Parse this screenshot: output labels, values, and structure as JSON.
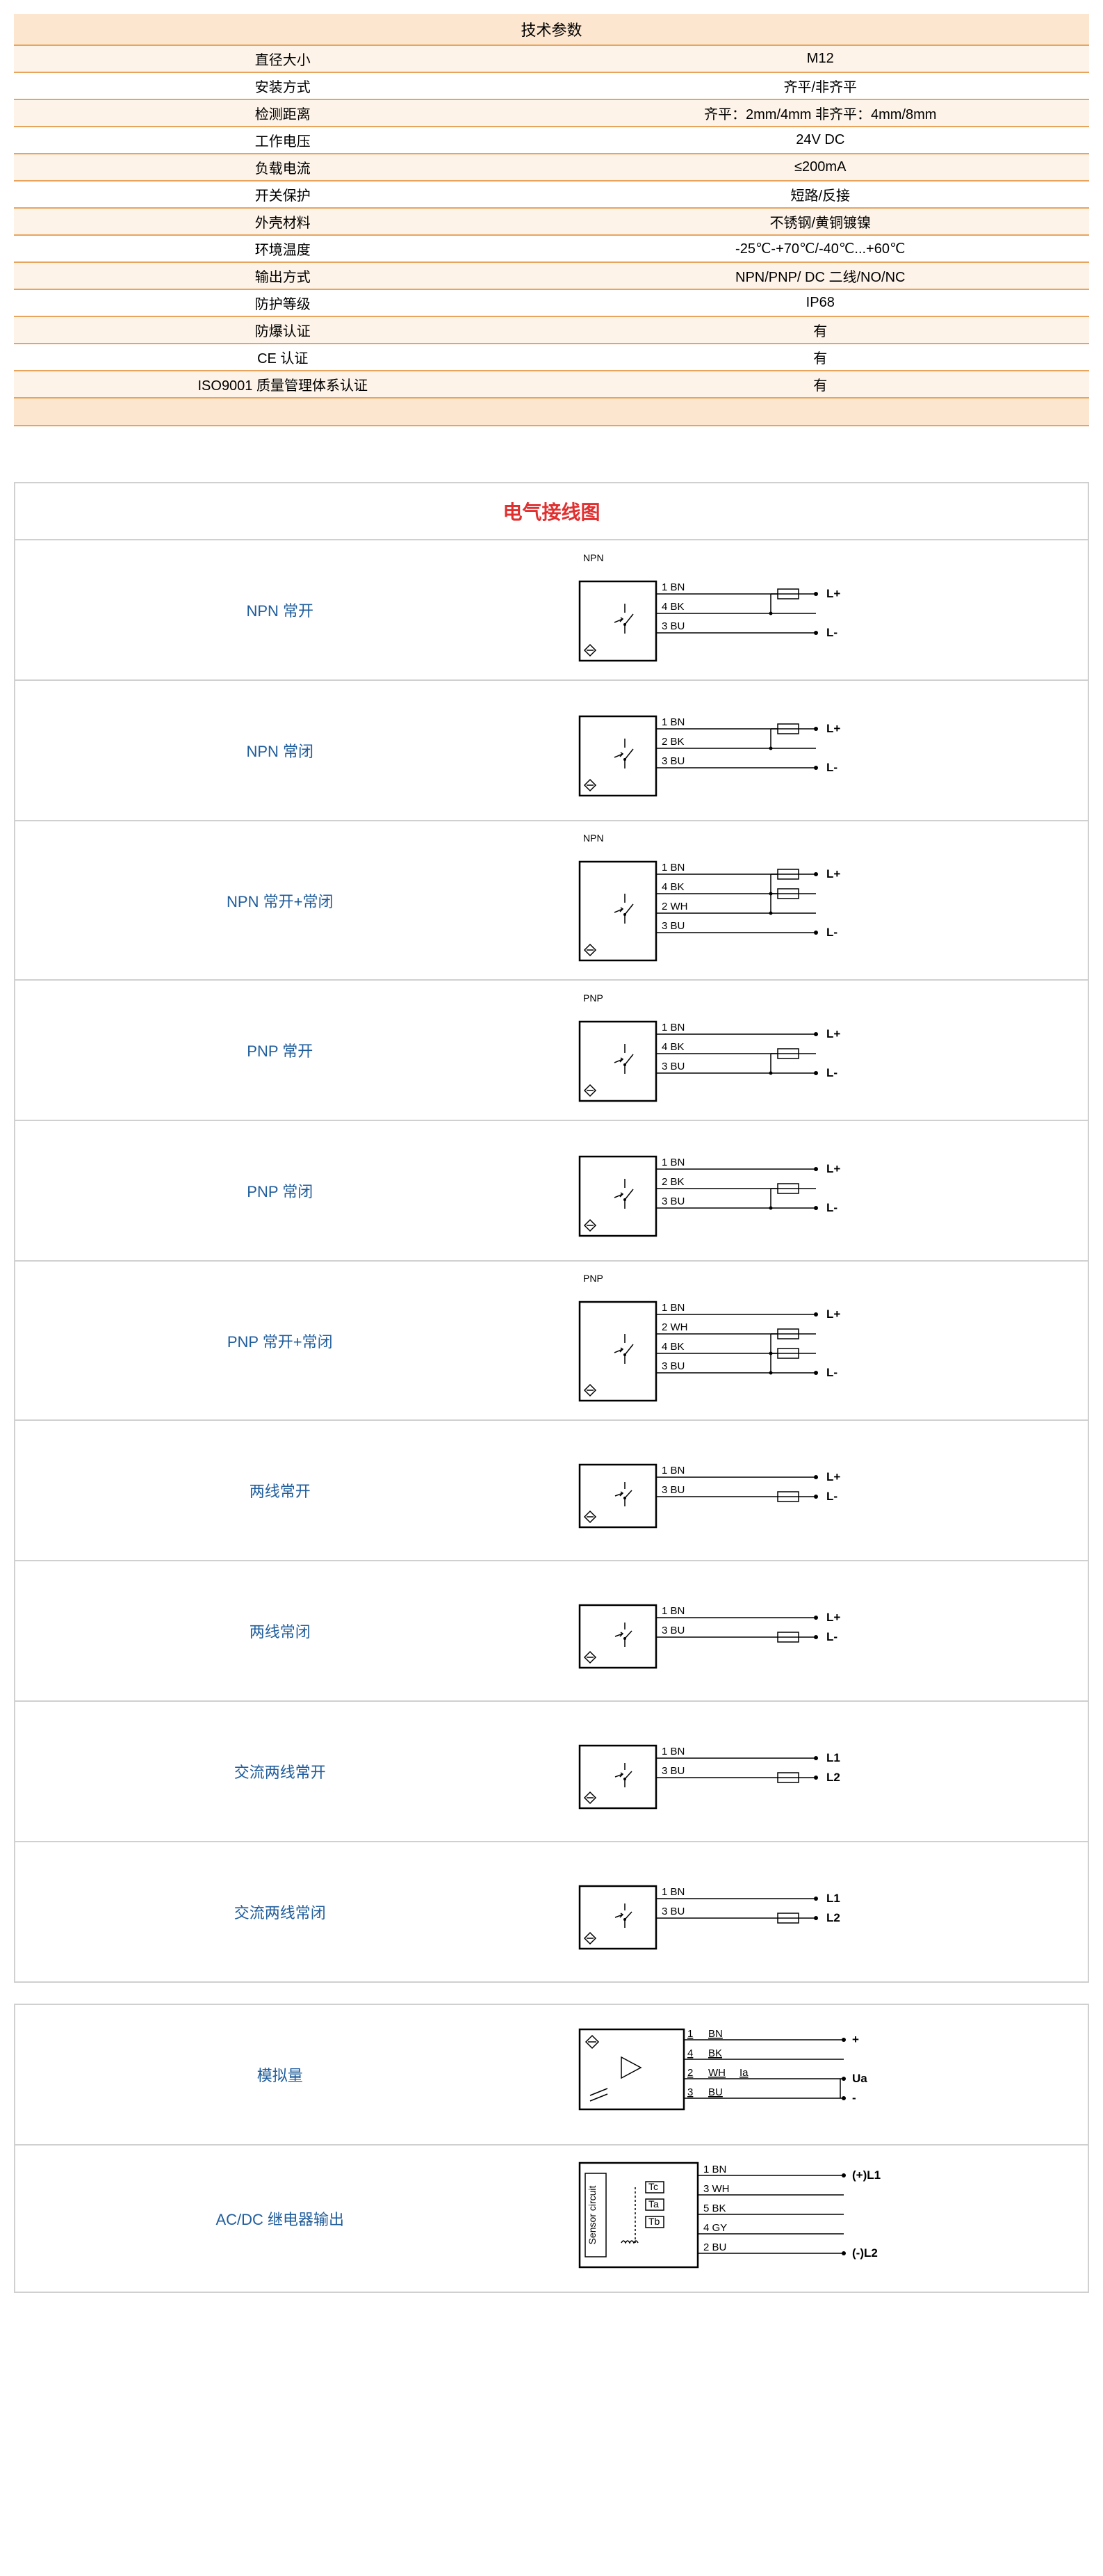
{
  "spec_table": {
    "header": "技术参数",
    "rows": [
      {
        "label": "直径大小",
        "value": "M12",
        "bg": "even"
      },
      {
        "label": "安装方式",
        "value": "齐平/非齐平",
        "bg": "odd"
      },
      {
        "label": "检测距离",
        "value": "齐平：2mm/4mm  非齐平：4mm/8mm",
        "bg": "even"
      },
      {
        "label": "工作电压",
        "value": "24V DC",
        "bg": "odd"
      },
      {
        "label": "负载电流",
        "value": "≤200mA",
        "bg": "even"
      },
      {
        "label": "开关保护",
        "value": "短路/反接",
        "bg": "odd"
      },
      {
        "label": "外壳材料",
        "value": "不锈钢/黄铜镀镍",
        "bg": "even"
      },
      {
        "label": "环境温度",
        "value": "-25℃-+70℃/-40℃...+60℃",
        "bg": "odd"
      },
      {
        "label": "输出方式",
        "value": "NPN/PNP/ DC 二线/NO/NC",
        "bg": "even"
      },
      {
        "label": "防护等级",
        "value": "IP68",
        "bg": "odd"
      },
      {
        "label": "防爆认证",
        "value": "有",
        "bg": "even"
      },
      {
        "label": "CE 认证",
        "value": "有",
        "bg": "odd"
      },
      {
        "label": "ISO9001 质量管理体系认证",
        "value": "有",
        "bg": "even"
      }
    ],
    "colors": {
      "header_bg": "#fce6cf",
      "even_bg": "#fdf3e8",
      "odd_bg": "#ffffff",
      "border": "#e8a45c"
    }
  },
  "wiring": {
    "title": "电气接线图",
    "title_color": "#e03030",
    "label_color": "#1f5d9c",
    "diagrams": [
      {
        "label": "NPN 常开",
        "header": "NPN",
        "wires": [
          {
            "num": "1",
            "color": "BN",
            "terminal": "L+",
            "load_box": true
          },
          {
            "num": "4",
            "color": "BK",
            "terminal": "",
            "load_box": false
          },
          {
            "num": "3",
            "color": "BU",
            "terminal": "L-",
            "load_box": false
          }
        ],
        "switch_type": "npn_no"
      },
      {
        "label": "NPN 常闭",
        "header": "",
        "wires": [
          {
            "num": "1",
            "color": "BN",
            "terminal": "L+",
            "load_box": true
          },
          {
            "num": "2",
            "color": "BK",
            "terminal": "",
            "load_box": false
          },
          {
            "num": "3",
            "color": "BU",
            "terminal": "L-",
            "load_box": false
          }
        ],
        "switch_type": "npn_nc"
      },
      {
        "label": "NPN  常开+常闭",
        "header": "NPN",
        "wires": [
          {
            "num": "1",
            "color": "BN",
            "terminal": "L+",
            "load_box": true
          },
          {
            "num": "4",
            "color": "BK",
            "terminal": "",
            "load_box": true
          },
          {
            "num": "2",
            "color": "WH",
            "terminal": "",
            "load_box": false
          },
          {
            "num": "3",
            "color": "BU",
            "terminal": "L-",
            "load_box": false
          }
        ],
        "switch_type": "npn_both"
      },
      {
        "label": "PNP 常开",
        "header": "PNP",
        "wires": [
          {
            "num": "1",
            "color": "BN",
            "terminal": "L+",
            "load_box": false
          },
          {
            "num": "4",
            "color": "BK",
            "terminal": "",
            "load_box": true
          },
          {
            "num": "3",
            "color": "BU",
            "terminal": "L-",
            "load_box": false
          }
        ],
        "switch_type": "pnp_no"
      },
      {
        "label": "PNP 常闭",
        "header": "",
        "wires": [
          {
            "num": "1",
            "color": "BN",
            "terminal": "L+",
            "load_box": false
          },
          {
            "num": "2",
            "color": "BK",
            "terminal": "",
            "load_box": true
          },
          {
            "num": "3",
            "color": "BU",
            "terminal": "L-",
            "load_box": false
          }
        ],
        "switch_type": "pnp_nc"
      },
      {
        "label": "PNP 常开+常闭",
        "header": "PNP",
        "wires": [
          {
            "num": "1",
            "color": "BN",
            "terminal": "L+",
            "load_box": false
          },
          {
            "num": "2",
            "color": "WH",
            "terminal": "",
            "load_box": true
          },
          {
            "num": "4",
            "color": "BK",
            "terminal": "",
            "load_box": true
          },
          {
            "num": "3",
            "color": "BU",
            "terminal": "L-",
            "load_box": false
          }
        ],
        "switch_type": "pnp_both"
      },
      {
        "label": "两线常开",
        "header": "",
        "wires": [
          {
            "num": "1",
            "color": "BN",
            "terminal": "L+",
            "load_box": false
          },
          {
            "num": "3",
            "color": "BU",
            "terminal": "L-",
            "load_box": true
          }
        ],
        "switch_type": "two_no"
      },
      {
        "label": "两线常闭",
        "header": "",
        "wires": [
          {
            "num": "1",
            "color": "BN",
            "terminal": "L+",
            "load_box": false
          },
          {
            "num": "3",
            "color": "BU",
            "terminal": "L-",
            "load_box": true
          }
        ],
        "switch_type": "two_nc"
      },
      {
        "label": "交流两线常开",
        "header": "",
        "wires": [
          {
            "num": "1",
            "color": "BN",
            "terminal": "L1",
            "load_box": false
          },
          {
            "num": "3",
            "color": "BU",
            "terminal": "L2",
            "load_box": true
          }
        ],
        "switch_type": "ac_no"
      },
      {
        "label": "交流两线常闭",
        "header": "",
        "wires": [
          {
            "num": "1",
            "color": "BN",
            "terminal": "L1",
            "load_box": false
          },
          {
            "num": "3",
            "color": "BU",
            "terminal": "L2",
            "load_box": true
          }
        ],
        "switch_type": "ac_nc"
      }
    ],
    "analog": {
      "label": "模拟量",
      "wires": [
        {
          "num": "1",
          "color": "BN",
          "terminal": "+"
        },
        {
          "num": "4",
          "color": "BK",
          "terminal": ""
        },
        {
          "num": "2",
          "color": "WH",
          "terminal": "Ua",
          "sublabel": "Ia"
        },
        {
          "num": "3",
          "color": "BU",
          "terminal": "-"
        }
      ]
    },
    "relay": {
      "label": "AC/DC 继电器输出",
      "sensor_label": "Sensor circuit",
      "relays": [
        "Tc",
        "Ta",
        "Tb"
      ],
      "wires": [
        {
          "num": "1",
          "color": "BN",
          "terminal": "(+)L1"
        },
        {
          "num": "3",
          "color": "WH",
          "terminal": ""
        },
        {
          "num": "5",
          "color": "BK",
          "terminal": ""
        },
        {
          "num": "4",
          "color": "GY",
          "terminal": ""
        },
        {
          "num": "2",
          "color": "BU",
          "terminal": "(-)L2"
        }
      ]
    }
  }
}
